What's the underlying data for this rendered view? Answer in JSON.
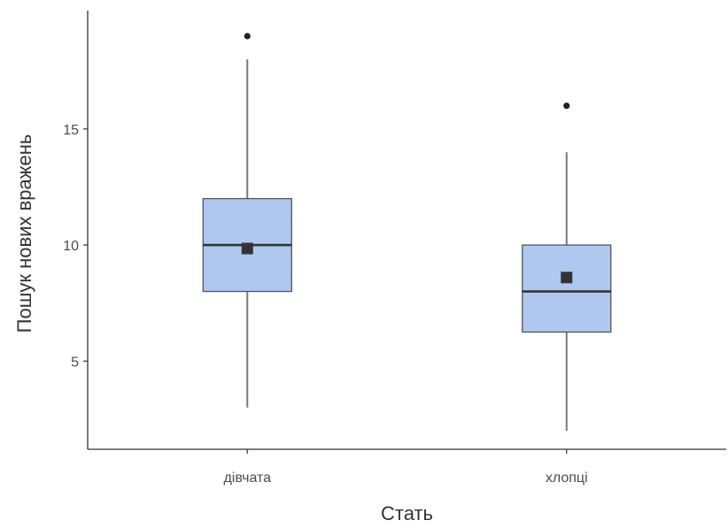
{
  "chart_data": {
    "type": "boxplot",
    "xlabel": "Стать",
    "ylabel": "Пошук нових вражень",
    "ylim": [
      1.2,
      20.1
    ],
    "y_ticks": [
      5,
      10,
      15
    ],
    "grid": false,
    "legend": "none",
    "categories": [
      "дівчата",
      "хлопці"
    ],
    "boxes": [
      {
        "category": "дівчата",
        "min": 3,
        "q1": 8,
        "median": 10,
        "q3": 12,
        "max": 18,
        "mean": 9.85,
        "outliers": [
          19
        ]
      },
      {
        "category": "хлопці",
        "min": 2,
        "q1": 6.25,
        "median": 8,
        "q3": 10,
        "max": 14,
        "mean": 8.6,
        "outliers": [
          16
        ]
      }
    ],
    "colors": {
      "box_fill": "#aec8f0",
      "box_stroke": "#555555",
      "median_line": "#333333",
      "whisker": "#7a7a7a",
      "mean_marker": "#333333",
      "outlier": "#222222",
      "axis": "#333333"
    }
  }
}
